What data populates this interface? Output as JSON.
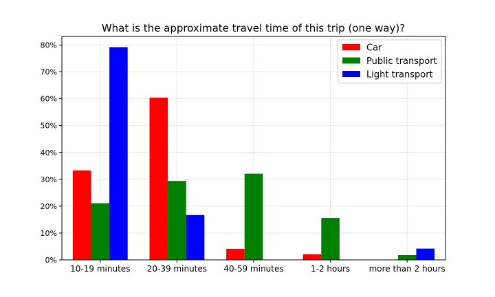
{
  "chart_data": {
    "type": "bar",
    "title": "What is the approximate travel time of this trip (one way)?",
    "xlabel": "",
    "ylabel": "",
    "categories": [
      "10-19 minutes",
      "20-39 minutes",
      "40-59 minutes",
      "1-2 hours",
      "more than 2 hours"
    ],
    "series": [
      {
        "name": "Car",
        "color": "#ff0000",
        "values": [
          33.3,
          60.4,
          4.1,
          2.1,
          0
        ]
      },
      {
        "name": "Public transport",
        "color": "#008000",
        "values": [
          21.1,
          29.4,
          32.1,
          15.6,
          1.8
        ]
      },
      {
        "name": "Light transport",
        "color": "#0000ff",
        "values": [
          79.2,
          16.7,
          0,
          0,
          4.2
        ]
      }
    ],
    "ylim": [
      0,
      83.2
    ],
    "yticks": [
      0,
      10,
      20,
      30,
      40,
      50,
      60,
      70,
      80
    ],
    "ytick_suffix": "%",
    "grid": true,
    "legend_position": "top-right"
  }
}
